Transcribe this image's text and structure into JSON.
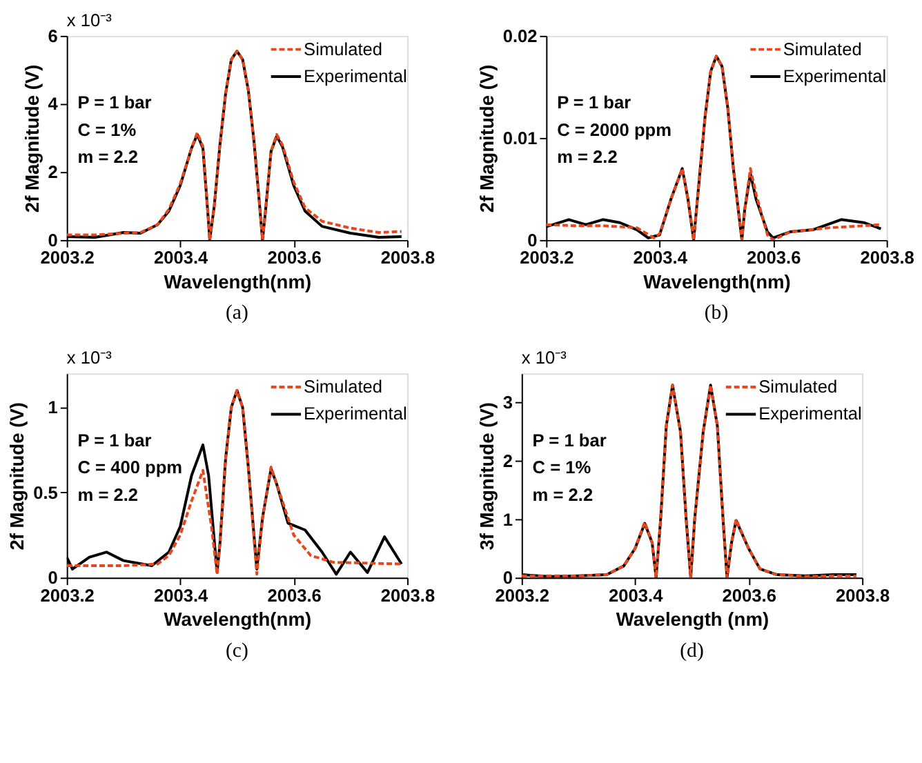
{
  "chart_data": [
    {
      "type": "line",
      "title": "(a)",
      "xlabel": "Wavelength(nm)",
      "ylabel": "2f Magnitude (V)",
      "xlim": [
        2003.2,
        2003.8
      ],
      "xticks": [
        2003.2,
        2003.4,
        2003.6,
        2003.8
      ],
      "ylim": [
        0,
        6
      ],
      "yticks": [
        0,
        2,
        4,
        6
      ],
      "grid": false,
      "legend": "top right",
      "annotations": [
        "P  = 1 bar",
        "C  = 1%",
        "m = 2.2",
        "x 10⁻³"
      ],
      "series": [
        {
          "name": "Simulated",
          "color": "#e8461c",
          "line_style": "dashed",
          "x": [
            2003.2,
            2003.25,
            2003.3,
            2003.33,
            2003.36,
            2003.38,
            2003.4,
            2003.42,
            2003.43,
            2003.44,
            2003.45,
            2003.452,
            2003.46,
            2003.47,
            2003.48,
            2003.49,
            2003.5,
            2003.51,
            2003.52,
            2003.53,
            2003.54,
            2003.545,
            2003.55,
            2003.56,
            2003.57,
            2003.58,
            2003.6,
            2003.62,
            2003.65,
            2003.7,
            2003.75,
            2003.79
          ],
          "values": [
            0.15,
            0.15,
            0.2,
            0.22,
            0.45,
            0.9,
            1.65,
            2.7,
            3.15,
            2.75,
            0.5,
            0.0,
            1.0,
            2.8,
            4.3,
            5.3,
            5.55,
            5.3,
            4.4,
            2.9,
            1.0,
            0.0,
            0.8,
            2.6,
            3.1,
            2.8,
            1.7,
            0.95,
            0.55,
            0.35,
            0.22,
            0.25
          ]
        },
        {
          "name": "Experimental",
          "color": "#000000",
          "line_style": "solid",
          "x": [
            2003.2,
            2003.25,
            2003.3,
            2003.33,
            2003.36,
            2003.38,
            2003.4,
            2003.42,
            2003.43,
            2003.44,
            2003.45,
            2003.452,
            2003.46,
            2003.47,
            2003.48,
            2003.49,
            2003.5,
            2003.51,
            2003.52,
            2003.53,
            2003.54,
            2003.545,
            2003.55,
            2003.56,
            2003.57,
            2003.58,
            2003.6,
            2003.62,
            2003.65,
            2003.7,
            2003.75,
            2003.79
          ],
          "values": [
            0.1,
            0.08,
            0.22,
            0.2,
            0.45,
            0.85,
            1.6,
            2.7,
            3.1,
            2.7,
            0.5,
            0.0,
            1.0,
            2.8,
            4.3,
            5.3,
            5.55,
            5.3,
            4.4,
            2.9,
            1.0,
            0.0,
            0.8,
            2.6,
            3.05,
            2.75,
            1.6,
            0.85,
            0.4,
            0.2,
            0.08,
            0.1
          ]
        }
      ]
    },
    {
      "type": "line",
      "title": "(b)",
      "xlabel": "Wavelength(nm)",
      "ylabel": "2f Magnitude (V)",
      "xlim": [
        2003.2,
        2003.8
      ],
      "xticks": [
        2003.2,
        2003.4,
        2003.6,
        2003.8
      ],
      "ylim": [
        0,
        0.02
      ],
      "yticks": [
        0,
        0.01,
        0.02
      ],
      "grid": false,
      "legend": "top right",
      "annotations": [
        "P  = 1 bar",
        "C  = 2000 ppm",
        "m = 2.2"
      ],
      "series": [
        {
          "name": "Simulated",
          "color": "#e8461c",
          "line_style": "dashed",
          "x": [
            2003.2,
            2003.25,
            2003.3,
            2003.36,
            2003.39,
            2003.4,
            2003.42,
            2003.44,
            2003.45,
            2003.46,
            2003.47,
            2003.48,
            2003.49,
            2003.5,
            2003.51,
            2003.52,
            2003.53,
            2003.545,
            2003.55,
            2003.56,
            2003.57,
            2003.59,
            2003.6,
            2003.63,
            2003.7,
            2003.79
          ],
          "values": [
            0.0015,
            0.0014,
            0.0014,
            0.0012,
            0.0002,
            0.0006,
            0.004,
            0.007,
            0.004,
            0.0,
            0.006,
            0.012,
            0.0165,
            0.018,
            0.017,
            0.013,
            0.007,
            0.0,
            0.003,
            0.007,
            0.0045,
            0.0005,
            0.0,
            0.0008,
            0.0012,
            0.0015
          ]
        },
        {
          "name": "Experimental",
          "color": "#000000",
          "line_style": "solid",
          "x": [
            2003.2,
            2003.24,
            2003.27,
            2003.3,
            2003.33,
            2003.36,
            2003.38,
            2003.4,
            2003.42,
            2003.44,
            2003.45,
            2003.46,
            2003.47,
            2003.48,
            2003.49,
            2003.5,
            2003.51,
            2003.52,
            2003.53,
            2003.545,
            2003.55,
            2003.56,
            2003.57,
            2003.59,
            2003.6,
            2003.63,
            2003.67,
            2003.72,
            2003.76,
            2003.79
          ],
          "values": [
            0.0013,
            0.002,
            0.0015,
            0.002,
            0.0017,
            0.001,
            0.0002,
            0.0005,
            0.004,
            0.007,
            0.004,
            0.0,
            0.006,
            0.012,
            0.0165,
            0.018,
            0.017,
            0.013,
            0.007,
            0.0,
            0.003,
            0.0065,
            0.004,
            0.0008,
            0.0002,
            0.0008,
            0.001,
            0.002,
            0.0017,
            0.0011
          ]
        }
      ]
    },
    {
      "type": "line",
      "title": "(c)",
      "xlabel": "Wavelength(nm)",
      "ylabel": "2f Magnitude (V)",
      "xlim": [
        2003.2,
        2003.8
      ],
      "xticks": [
        2003.2,
        2003.4,
        2003.6,
        2003.8
      ],
      "ylim": [
        0,
        1.2
      ],
      "yticks": [
        0,
        0.5,
        1
      ],
      "grid": false,
      "legend": "top right",
      "annotations": [
        "P  = 1 bar",
        "C  = 400 ppm",
        "m = 2.2",
        "x 10⁻³"
      ],
      "series": [
        {
          "name": "Simulated",
          "color": "#e8461c",
          "line_style": "dashed",
          "x": [
            2003.2,
            2003.3,
            2003.36,
            2003.38,
            2003.4,
            2003.42,
            2003.44,
            2003.455,
            2003.465,
            2003.47,
            2003.48,
            2003.49,
            2003.5,
            2003.51,
            2003.52,
            2003.535,
            2003.545,
            2003.56,
            2003.58,
            2003.6,
            2003.63,
            2003.67,
            2003.79
          ],
          "values": [
            0.07,
            0.07,
            0.08,
            0.13,
            0.25,
            0.45,
            0.63,
            0.3,
            0.02,
            0.2,
            0.7,
            1.0,
            1.1,
            1.0,
            0.65,
            0.02,
            0.35,
            0.65,
            0.45,
            0.25,
            0.13,
            0.09,
            0.08
          ]
        },
        {
          "name": "Experimental",
          "color": "#000000",
          "line_style": "solid",
          "x": [
            2003.2,
            2003.21,
            2003.24,
            2003.27,
            2003.3,
            2003.35,
            2003.38,
            2003.4,
            2003.42,
            2003.44,
            2003.45,
            2003.465,
            2003.47,
            2003.48,
            2003.49,
            2003.5,
            2003.51,
            2003.52,
            2003.535,
            2003.545,
            2003.56,
            2003.57,
            2003.59,
            2003.62,
            2003.65,
            2003.675,
            2003.7,
            2003.73,
            2003.76,
            2003.79
          ],
          "values": [
            0.12,
            0.05,
            0.12,
            0.15,
            0.1,
            0.07,
            0.15,
            0.3,
            0.6,
            0.78,
            0.6,
            0.03,
            0.2,
            0.7,
            1.0,
            1.1,
            1.0,
            0.65,
            0.05,
            0.35,
            0.64,
            0.55,
            0.32,
            0.28,
            0.15,
            0.02,
            0.15,
            0.03,
            0.24,
            0.08
          ]
        }
      ]
    },
    {
      "type": "line",
      "title": "(d)",
      "xlabel": "Wavelength (nm)",
      "ylabel": "3f Magnitude (V)",
      "xlim": [
        2003.2,
        2003.8
      ],
      "xticks": [
        2003.2,
        2003.4,
        2003.6,
        2003.8
      ],
      "ylim": [
        0,
        3.5
      ],
      "yticks": [
        0,
        1,
        2,
        3
      ],
      "grid": false,
      "legend": "top right",
      "annotations": [
        "P  = 1 bar",
        "C  = 1%",
        "m = 2.2",
        "x 10⁻³"
      ],
      "series": [
        {
          "name": "Simulated",
          "color": "#e8461c",
          "line_style": "dashed",
          "x": [
            2003.2,
            2003.25,
            2003.3,
            2003.35,
            2003.38,
            2003.4,
            2003.417,
            2003.43,
            2003.437,
            2003.445,
            2003.455,
            2003.466,
            2003.48,
            2003.49,
            2003.498,
            2003.505,
            2003.52,
            2003.533,
            2003.545,
            2003.555,
            2003.562,
            2003.57,
            2003.578,
            2003.6,
            2003.62,
            2003.65,
            2003.7,
            2003.75,
            2003.79
          ],
          "values": [
            0.03,
            0.03,
            0.03,
            0.05,
            0.2,
            0.5,
            0.95,
            0.6,
            0.0,
            1.0,
            2.6,
            3.3,
            2.5,
            1.0,
            0.0,
            1.0,
            2.5,
            3.3,
            2.6,
            1.0,
            0.0,
            0.6,
            1.0,
            0.5,
            0.15,
            0.05,
            0.02,
            0.03,
            0.03
          ]
        },
        {
          "name": "Experimental",
          "color": "#000000",
          "line_style": "solid",
          "x": [
            2003.2,
            2003.25,
            2003.3,
            2003.35,
            2003.38,
            2003.4,
            2003.417,
            2003.43,
            2003.437,
            2003.445,
            2003.455,
            2003.466,
            2003.48,
            2003.49,
            2003.498,
            2003.505,
            2003.52,
            2003.533,
            2003.545,
            2003.555,
            2003.562,
            2003.57,
            2003.578,
            2003.6,
            2003.62,
            2003.65,
            2003.7,
            2003.75,
            2003.79
          ],
          "values": [
            0.05,
            0.02,
            0.03,
            0.05,
            0.2,
            0.5,
            0.93,
            0.6,
            0.0,
            1.0,
            2.6,
            3.3,
            2.5,
            1.0,
            0.0,
            1.0,
            2.5,
            3.3,
            2.6,
            1.0,
            0.0,
            0.6,
            0.98,
            0.5,
            0.15,
            0.05,
            0.03,
            0.05,
            0.05
          ]
        }
      ]
    }
  ]
}
